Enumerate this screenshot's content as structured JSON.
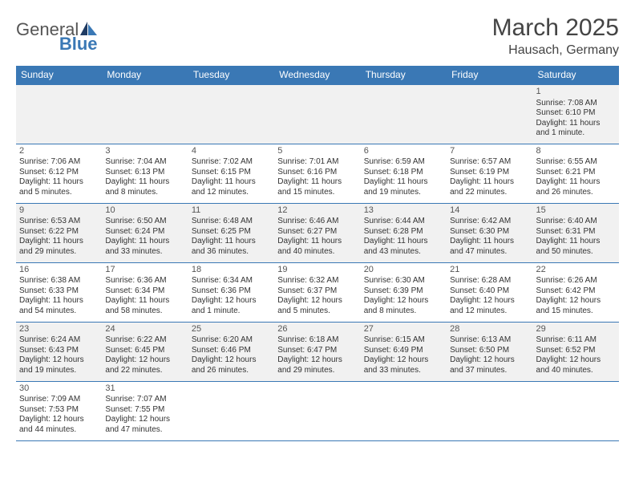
{
  "logo": {
    "text1": "General",
    "text2": "Blue"
  },
  "title": "March 2025",
  "location": "Hausach, Germany",
  "colors": {
    "header_bg": "#3a78b5",
    "header_text": "#ffffff",
    "row_alt_bg": "#f1f1f1",
    "row_bg": "#ffffff",
    "border": "#3a78b5",
    "text": "#333333",
    "logo_accent": "#3a78b5"
  },
  "calendar": {
    "day_headers": [
      "Sunday",
      "Monday",
      "Tuesday",
      "Wednesday",
      "Thursday",
      "Friday",
      "Saturday"
    ],
    "weeks": [
      [
        null,
        null,
        null,
        null,
        null,
        null,
        {
          "d": "1",
          "sunrise": "Sunrise: 7:08 AM",
          "sunset": "Sunset: 6:10 PM",
          "daylight1": "Daylight: 11 hours",
          "daylight2": "and 1 minute."
        }
      ],
      [
        {
          "d": "2",
          "sunrise": "Sunrise: 7:06 AM",
          "sunset": "Sunset: 6:12 PM",
          "daylight1": "Daylight: 11 hours",
          "daylight2": "and 5 minutes."
        },
        {
          "d": "3",
          "sunrise": "Sunrise: 7:04 AM",
          "sunset": "Sunset: 6:13 PM",
          "daylight1": "Daylight: 11 hours",
          "daylight2": "and 8 minutes."
        },
        {
          "d": "4",
          "sunrise": "Sunrise: 7:02 AM",
          "sunset": "Sunset: 6:15 PM",
          "daylight1": "Daylight: 11 hours",
          "daylight2": "and 12 minutes."
        },
        {
          "d": "5",
          "sunrise": "Sunrise: 7:01 AM",
          "sunset": "Sunset: 6:16 PM",
          "daylight1": "Daylight: 11 hours",
          "daylight2": "and 15 minutes."
        },
        {
          "d": "6",
          "sunrise": "Sunrise: 6:59 AM",
          "sunset": "Sunset: 6:18 PM",
          "daylight1": "Daylight: 11 hours",
          "daylight2": "and 19 minutes."
        },
        {
          "d": "7",
          "sunrise": "Sunrise: 6:57 AM",
          "sunset": "Sunset: 6:19 PM",
          "daylight1": "Daylight: 11 hours",
          "daylight2": "and 22 minutes."
        },
        {
          "d": "8",
          "sunrise": "Sunrise: 6:55 AM",
          "sunset": "Sunset: 6:21 PM",
          "daylight1": "Daylight: 11 hours",
          "daylight2": "and 26 minutes."
        }
      ],
      [
        {
          "d": "9",
          "sunrise": "Sunrise: 6:53 AM",
          "sunset": "Sunset: 6:22 PM",
          "daylight1": "Daylight: 11 hours",
          "daylight2": "and 29 minutes."
        },
        {
          "d": "10",
          "sunrise": "Sunrise: 6:50 AM",
          "sunset": "Sunset: 6:24 PM",
          "daylight1": "Daylight: 11 hours",
          "daylight2": "and 33 minutes."
        },
        {
          "d": "11",
          "sunrise": "Sunrise: 6:48 AM",
          "sunset": "Sunset: 6:25 PM",
          "daylight1": "Daylight: 11 hours",
          "daylight2": "and 36 minutes."
        },
        {
          "d": "12",
          "sunrise": "Sunrise: 6:46 AM",
          "sunset": "Sunset: 6:27 PM",
          "daylight1": "Daylight: 11 hours",
          "daylight2": "and 40 minutes."
        },
        {
          "d": "13",
          "sunrise": "Sunrise: 6:44 AM",
          "sunset": "Sunset: 6:28 PM",
          "daylight1": "Daylight: 11 hours",
          "daylight2": "and 43 minutes."
        },
        {
          "d": "14",
          "sunrise": "Sunrise: 6:42 AM",
          "sunset": "Sunset: 6:30 PM",
          "daylight1": "Daylight: 11 hours",
          "daylight2": "and 47 minutes."
        },
        {
          "d": "15",
          "sunrise": "Sunrise: 6:40 AM",
          "sunset": "Sunset: 6:31 PM",
          "daylight1": "Daylight: 11 hours",
          "daylight2": "and 50 minutes."
        }
      ],
      [
        {
          "d": "16",
          "sunrise": "Sunrise: 6:38 AM",
          "sunset": "Sunset: 6:33 PM",
          "daylight1": "Daylight: 11 hours",
          "daylight2": "and 54 minutes."
        },
        {
          "d": "17",
          "sunrise": "Sunrise: 6:36 AM",
          "sunset": "Sunset: 6:34 PM",
          "daylight1": "Daylight: 11 hours",
          "daylight2": "and 58 minutes."
        },
        {
          "d": "18",
          "sunrise": "Sunrise: 6:34 AM",
          "sunset": "Sunset: 6:36 PM",
          "daylight1": "Daylight: 12 hours",
          "daylight2": "and 1 minute."
        },
        {
          "d": "19",
          "sunrise": "Sunrise: 6:32 AM",
          "sunset": "Sunset: 6:37 PM",
          "daylight1": "Daylight: 12 hours",
          "daylight2": "and 5 minutes."
        },
        {
          "d": "20",
          "sunrise": "Sunrise: 6:30 AM",
          "sunset": "Sunset: 6:39 PM",
          "daylight1": "Daylight: 12 hours",
          "daylight2": "and 8 minutes."
        },
        {
          "d": "21",
          "sunrise": "Sunrise: 6:28 AM",
          "sunset": "Sunset: 6:40 PM",
          "daylight1": "Daylight: 12 hours",
          "daylight2": "and 12 minutes."
        },
        {
          "d": "22",
          "sunrise": "Sunrise: 6:26 AM",
          "sunset": "Sunset: 6:42 PM",
          "daylight1": "Daylight: 12 hours",
          "daylight2": "and 15 minutes."
        }
      ],
      [
        {
          "d": "23",
          "sunrise": "Sunrise: 6:24 AM",
          "sunset": "Sunset: 6:43 PM",
          "daylight1": "Daylight: 12 hours",
          "daylight2": "and 19 minutes."
        },
        {
          "d": "24",
          "sunrise": "Sunrise: 6:22 AM",
          "sunset": "Sunset: 6:45 PM",
          "daylight1": "Daylight: 12 hours",
          "daylight2": "and 22 minutes."
        },
        {
          "d": "25",
          "sunrise": "Sunrise: 6:20 AM",
          "sunset": "Sunset: 6:46 PM",
          "daylight1": "Daylight: 12 hours",
          "daylight2": "and 26 minutes."
        },
        {
          "d": "26",
          "sunrise": "Sunrise: 6:18 AM",
          "sunset": "Sunset: 6:47 PM",
          "daylight1": "Daylight: 12 hours",
          "daylight2": "and 29 minutes."
        },
        {
          "d": "27",
          "sunrise": "Sunrise: 6:15 AM",
          "sunset": "Sunset: 6:49 PM",
          "daylight1": "Daylight: 12 hours",
          "daylight2": "and 33 minutes."
        },
        {
          "d": "28",
          "sunrise": "Sunrise: 6:13 AM",
          "sunset": "Sunset: 6:50 PM",
          "daylight1": "Daylight: 12 hours",
          "daylight2": "and 37 minutes."
        },
        {
          "d": "29",
          "sunrise": "Sunrise: 6:11 AM",
          "sunset": "Sunset: 6:52 PM",
          "daylight1": "Daylight: 12 hours",
          "daylight2": "and 40 minutes."
        }
      ],
      [
        {
          "d": "30",
          "sunrise": "Sunrise: 7:09 AM",
          "sunset": "Sunset: 7:53 PM",
          "daylight1": "Daylight: 12 hours",
          "daylight2": "and 44 minutes."
        },
        {
          "d": "31",
          "sunrise": "Sunrise: 7:07 AM",
          "sunset": "Sunset: 7:55 PM",
          "daylight1": "Daylight: 12 hours",
          "daylight2": "and 47 minutes."
        },
        null,
        null,
        null,
        null,
        null
      ]
    ]
  }
}
